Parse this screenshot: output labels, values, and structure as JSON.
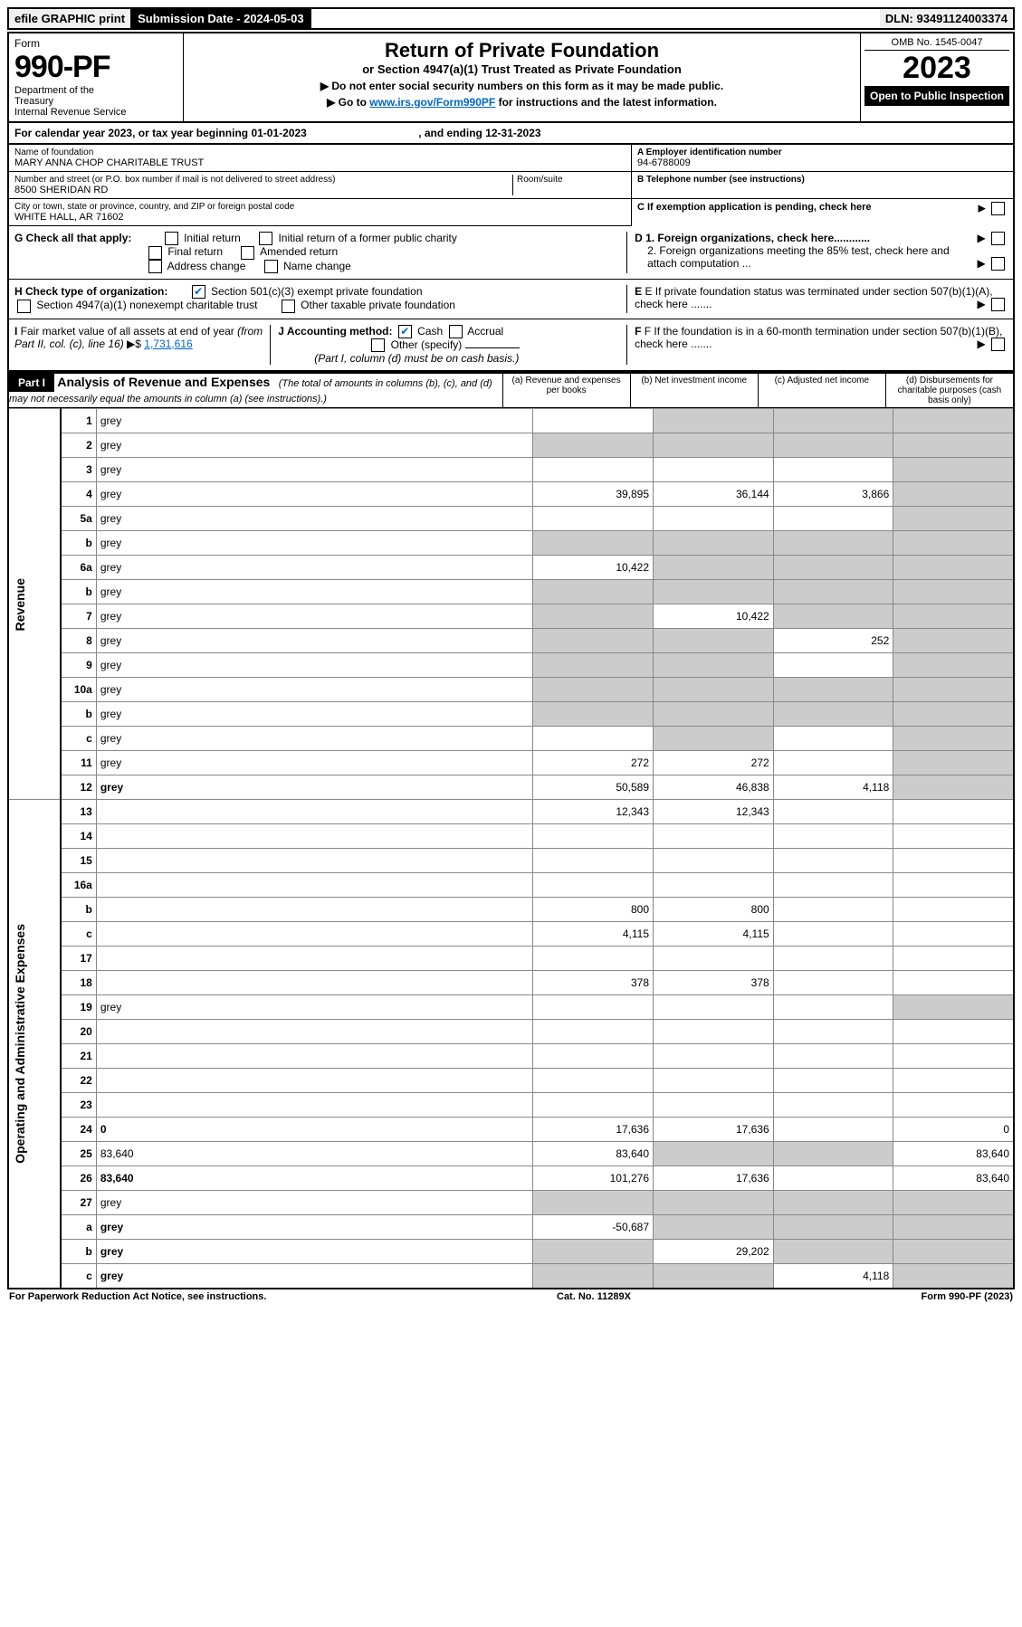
{
  "top": {
    "efile": "efile GRAPHIC print",
    "submission": "Submission Date - 2024-05-03",
    "dln": "DLN: 93491124003374"
  },
  "header": {
    "form_label": "Form",
    "form_number": "990-PF",
    "dept": "Department of the Treasury\nInternal Revenue Service",
    "title": "Return of Private Foundation",
    "subtitle": "or Section 4947(a)(1) Trust Treated as Private Foundation",
    "instr1": "▶ Do not enter social security numbers on this form as it may be made public.",
    "instr2_pre": "▶ Go to ",
    "instr2_link": "www.irs.gov/Form990PF",
    "instr2_post": " for instructions and the latest information.",
    "omb": "OMB No. 1545-0047",
    "year": "2023",
    "open": "Open to Public Inspection"
  },
  "cal_year": {
    "pre": "For calendar year 2023, or tax year beginning ",
    "start": "01-01-2023",
    "mid": " , and ending ",
    "end": "12-31-2023"
  },
  "info": {
    "name_label": "Name of foundation",
    "name": "MARY ANNA CHOP CHARITABLE TRUST",
    "addr_label": "Number and street (or P.O. box number if mail is not delivered to street address)",
    "addr": "8500 SHERIDAN RD",
    "room_label": "Room/suite",
    "city_label": "City or town, state or province, country, and ZIP or foreign postal code",
    "city": "WHITE HALL, AR  71602",
    "a_label": "A Employer identification number",
    "a_val": "94-6788009",
    "b_label": "B Telephone number (see instructions)",
    "c_label": "C If exemption application is pending, check here",
    "d1": "D 1. Foreign organizations, check here............",
    "d2": "2. Foreign organizations meeting the 85% test, check here and attach computation ...",
    "e": "E  If private foundation status was terminated under section 507(b)(1)(A), check here .......",
    "f": "F  If the foundation is in a 60-month termination under section 507(b)(1)(B), check here .......",
    "g_label": "G Check all that apply:",
    "g_opts": [
      "Initial return",
      "Initial return of a former public charity",
      "Final return",
      "Amended return",
      "Address change",
      "Name change"
    ],
    "h_label": "H Check type of organization:",
    "h_opt1": "Section 501(c)(3) exempt private foundation",
    "h_opt2": "Section 4947(a)(1) nonexempt charitable trust",
    "h_opt3": "Other taxable private foundation",
    "i_label": "I Fair market value of all assets at end of year (from Part II, col. (c), line 16) ▶$ ",
    "i_val": "1,731,616",
    "j_label": "J Accounting method:",
    "j_cash": "Cash",
    "j_accrual": "Accrual",
    "j_other": "Other (specify)",
    "j_note": "(Part I, column (d) must be on cash basis.)"
  },
  "part1": {
    "label": "Part I",
    "title": "Analysis of Revenue and Expenses",
    "note": " (The total of amounts in columns (b), (c), and (d) may not necessarily equal the amounts in column (a) (see instructions).)",
    "col_a": "(a)   Revenue and expenses per books",
    "col_b": "(b)   Net investment income",
    "col_c": "(c)   Adjusted net income",
    "col_d": "(d)   Disbursements for charitable purposes (cash basis only)"
  },
  "sides": {
    "revenue": "Revenue",
    "expenses": "Operating and Administrative Expenses"
  },
  "lines": [
    {
      "n": "1",
      "d": "grey",
      "a": "",
      "b": "grey",
      "c": "grey"
    },
    {
      "n": "2",
      "d": "grey",
      "a": "grey",
      "b": "grey",
      "c": "grey"
    },
    {
      "n": "3",
      "d": "grey",
      "a": "",
      "b": "",
      "c": ""
    },
    {
      "n": "4",
      "d": "grey",
      "a": "39,895",
      "b": "36,144",
      "c": "3,866"
    },
    {
      "n": "5a",
      "d": "grey",
      "a": "",
      "b": "",
      "c": ""
    },
    {
      "n": "b",
      "d": "grey",
      "a": "grey",
      "b": "grey",
      "c": "grey"
    },
    {
      "n": "6a",
      "d": "grey",
      "a": "10,422",
      "b": "grey",
      "c": "grey"
    },
    {
      "n": "b",
      "d": "grey",
      "a": "grey",
      "b": "grey",
      "c": "grey"
    },
    {
      "n": "7",
      "d": "grey",
      "a": "grey",
      "b": "10,422",
      "c": "grey"
    },
    {
      "n": "8",
      "d": "grey",
      "a": "grey",
      "b": "grey",
      "c": "252"
    },
    {
      "n": "9",
      "d": "grey",
      "a": "grey",
      "b": "grey",
      "c": ""
    },
    {
      "n": "10a",
      "d": "grey",
      "a": "grey",
      "b": "grey",
      "c": "grey"
    },
    {
      "n": "b",
      "d": "grey",
      "a": "grey",
      "b": "grey",
      "c": "grey"
    },
    {
      "n": "c",
      "d": "grey",
      "a": "",
      "b": "grey",
      "c": ""
    },
    {
      "n": "11",
      "d": "grey",
      "a": "272",
      "b": "272",
      "c": ""
    },
    {
      "n": "12",
      "d": "grey",
      "bold": true,
      "a": "50,589",
      "b": "46,838",
      "c": "4,118"
    },
    {
      "n": "13",
      "d": "",
      "a": "12,343",
      "b": "12,343",
      "c": ""
    },
    {
      "n": "14",
      "d": "",
      "a": "",
      "b": "",
      "c": ""
    },
    {
      "n": "15",
      "d": "",
      "a": "",
      "b": "",
      "c": ""
    },
    {
      "n": "16a",
      "d": "",
      "a": "",
      "b": "",
      "c": ""
    },
    {
      "n": "b",
      "d": "",
      "a": "800",
      "b": "800",
      "c": ""
    },
    {
      "n": "c",
      "d": "",
      "a": "4,115",
      "b": "4,115",
      "c": ""
    },
    {
      "n": "17",
      "d": "",
      "a": "",
      "b": "",
      "c": ""
    },
    {
      "n": "18",
      "d": "",
      "a": "378",
      "b": "378",
      "c": ""
    },
    {
      "n": "19",
      "d": "grey",
      "a": "",
      "b": "",
      "c": ""
    },
    {
      "n": "20",
      "d": "",
      "a": "",
      "b": "",
      "c": ""
    },
    {
      "n": "21",
      "d": "",
      "a": "",
      "b": "",
      "c": ""
    },
    {
      "n": "22",
      "d": "",
      "a": "",
      "b": "",
      "c": ""
    },
    {
      "n": "23",
      "d": "",
      "a": "",
      "b": "",
      "c": ""
    },
    {
      "n": "24",
      "d": "0",
      "bold": true,
      "a": "17,636",
      "b": "17,636",
      "c": ""
    },
    {
      "n": "25",
      "d": "83,640",
      "a": "83,640",
      "b": "grey",
      "c": "grey"
    },
    {
      "n": "26",
      "d": "83,640",
      "bold": true,
      "a": "101,276",
      "b": "17,636",
      "c": ""
    },
    {
      "n": "27",
      "d": "grey",
      "a": "grey",
      "b": "grey",
      "c": "grey"
    },
    {
      "n": "a",
      "d": "grey",
      "bold": true,
      "a": "-50,687",
      "b": "grey",
      "c": "grey"
    },
    {
      "n": "b",
      "d": "grey",
      "bold": true,
      "a": "grey",
      "b": "29,202",
      "c": "grey"
    },
    {
      "n": "c",
      "d": "grey",
      "bold": true,
      "a": "grey",
      "b": "grey",
      "c": "4,118"
    }
  ],
  "footer": {
    "left": "For Paperwork Reduction Act Notice, see instructions.",
    "center": "Cat. No. 11289X",
    "right": "Form 990-PF (2023)"
  }
}
